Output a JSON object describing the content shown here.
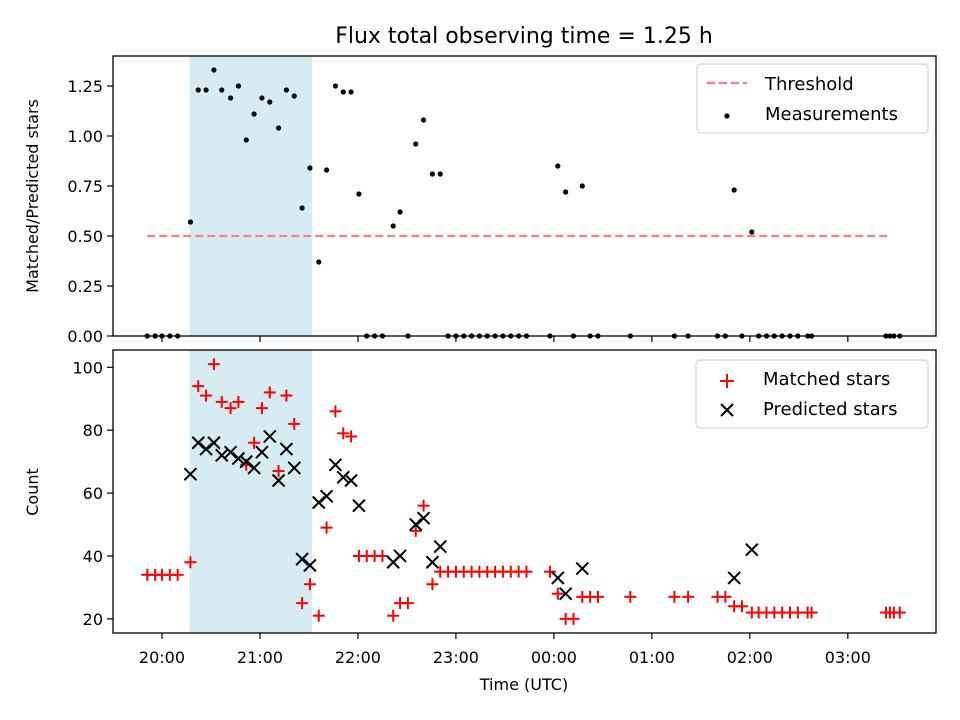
{
  "chart_data": [
    {
      "type": "scatter",
      "title": "Flux total observing time = 1.25 h",
      "xlabel": "",
      "ylabel": "Matched/Predicted stars",
      "x_unit": "hours since 20:00 UTC",
      "xlim": [
        -0.5,
        7.9
      ],
      "ylim": [
        0,
        1.4
      ],
      "yticks": [
        0,
        0.25,
        0.5,
        0.75,
        1.0,
        1.25
      ],
      "ytick_labels": [
        "0.00",
        "0.25",
        "0.50",
        "0.75",
        "1.00",
        "1.25",
        ""
      ],
      "grid": false,
      "legend_location": "top-right",
      "shaded_span": {
        "x0": 0.28,
        "x1": 1.53,
        "color": "#add8e6"
      },
      "series": [
        {
          "name": "Threshold",
          "kind": "dashed-line",
          "color": "#ff7f7f",
          "x": [
            -0.15,
            7.4
          ],
          "y": [
            0.5,
            0.5
          ]
        },
        {
          "name": "Measurements",
          "kind": "points",
          "color": "#000000",
          "points": [
            [
              -0.15,
              0
            ],
            [
              -0.07,
              0
            ],
            [
              0.0,
              0
            ],
            [
              0.08,
              0
            ],
            [
              0.16,
              0
            ],
            [
              0.29,
              0.57
            ],
            [
              0.37,
              1.23
            ],
            [
              0.45,
              1.23
            ],
            [
              0.53,
              1.33
            ],
            [
              0.61,
              1.23
            ],
            [
              0.7,
              1.19
            ],
            [
              0.78,
              1.25
            ],
            [
              0.86,
              0.98
            ],
            [
              0.94,
              1.11
            ],
            [
              1.02,
              1.19
            ],
            [
              1.1,
              1.17
            ],
            [
              1.19,
              1.04
            ],
            [
              1.27,
              1.23
            ],
            [
              1.35,
              1.2
            ],
            [
              1.43,
              0.64
            ],
            [
              1.51,
              0.84
            ],
            [
              1.6,
              0.37
            ],
            [
              1.68,
              0.83
            ],
            [
              1.77,
              1.25
            ],
            [
              1.85,
              1.22
            ],
            [
              1.93,
              1.22
            ],
            [
              2.01,
              0.71
            ],
            [
              2.09,
              0
            ],
            [
              2.17,
              0
            ],
            [
              2.25,
              0
            ],
            [
              2.36,
              0.55
            ],
            [
              2.43,
              0.62
            ],
            [
              2.51,
              0
            ],
            [
              2.59,
              0.96
            ],
            [
              2.67,
              1.08
            ],
            [
              2.76,
              0.81
            ],
            [
              2.84,
              0.81
            ],
            [
              2.92,
              0
            ],
            [
              3.0,
              0
            ],
            [
              3.08,
              0
            ],
            [
              3.16,
              0
            ],
            [
              3.24,
              0
            ],
            [
              3.32,
              0
            ],
            [
              3.4,
              0
            ],
            [
              3.48,
              0
            ],
            [
              3.56,
              0
            ],
            [
              3.64,
              0
            ],
            [
              3.72,
              0
            ],
            [
              3.96,
              0
            ],
            [
              4.04,
              0.85
            ],
            [
              4.12,
              0.72
            ],
            [
              4.2,
              0
            ],
            [
              4.29,
              0.75
            ],
            [
              4.37,
              0
            ],
            [
              4.45,
              0
            ],
            [
              4.78,
              0
            ],
            [
              5.23,
              0
            ],
            [
              5.37,
              0
            ],
            [
              5.67,
              0
            ],
            [
              5.75,
              0
            ],
            [
              5.84,
              0.73
            ],
            [
              5.92,
              0
            ],
            [
              6.02,
              0.52
            ],
            [
              6.09,
              0
            ],
            [
              6.17,
              0
            ],
            [
              6.25,
              0
            ],
            [
              6.33,
              0
            ],
            [
              6.41,
              0
            ],
            [
              6.49,
              0
            ],
            [
              6.59,
              0
            ],
            [
              6.63,
              0
            ],
            [
              7.39,
              0
            ],
            [
              7.43,
              0
            ],
            [
              7.47,
              0
            ],
            [
              7.53,
              0
            ]
          ]
        }
      ]
    },
    {
      "type": "scatter",
      "title": "",
      "xlabel": "Time (UTC)",
      "ylabel": "Count",
      "x_unit": "hours since 20:00 UTC",
      "xlim": [
        -0.5,
        7.9
      ],
      "ylim": [
        15.5,
        105.5
      ],
      "yticks": [
        20,
        40,
        60,
        80,
        100
      ],
      "xticks": [
        0,
        1,
        2,
        3,
        4,
        5,
        6,
        7
      ],
      "xtick_labels": [
        "20:00",
        "21:00",
        "22:00",
        "23:00",
        "00:00",
        "01:00",
        "02:00",
        "03:00"
      ],
      "grid": false,
      "legend_location": "top-right",
      "shaded_span": {
        "x0": 0.28,
        "x1": 1.53,
        "color": "#add8e6"
      },
      "series": [
        {
          "name": "Matched stars",
          "marker": "+",
          "color": "#ff0000",
          "points": [
            [
              -0.15,
              34
            ],
            [
              -0.07,
              34
            ],
            [
              0.0,
              34
            ],
            [
              0.08,
              34
            ],
            [
              0.16,
              34
            ],
            [
              0.29,
              38
            ],
            [
              0.37,
              94
            ],
            [
              0.45,
              91
            ],
            [
              0.53,
              101
            ],
            [
              0.61,
              89
            ],
            [
              0.7,
              87
            ],
            [
              0.78,
              89
            ],
            [
              0.86,
              69
            ],
            [
              0.94,
              76
            ],
            [
              1.02,
              87
            ],
            [
              1.1,
              92
            ],
            [
              1.19,
              67
            ],
            [
              1.27,
              91
            ],
            [
              1.35,
              82
            ],
            [
              1.43,
              25
            ],
            [
              1.51,
              31
            ],
            [
              1.6,
              21
            ],
            [
              1.68,
              49
            ],
            [
              1.77,
              86
            ],
            [
              1.85,
              79
            ],
            [
              1.93,
              78
            ],
            [
              2.01,
              40
            ],
            [
              2.09,
              40
            ],
            [
              2.17,
              40
            ],
            [
              2.25,
              40
            ],
            [
              2.36,
              21
            ],
            [
              2.43,
              25
            ],
            [
              2.51,
              25
            ],
            [
              2.59,
              48
            ],
            [
              2.67,
              56
            ],
            [
              2.76,
              31
            ],
            [
              2.84,
              35
            ],
            [
              2.92,
              35
            ],
            [
              3.0,
              35
            ],
            [
              3.08,
              35
            ],
            [
              3.16,
              35
            ],
            [
              3.24,
              35
            ],
            [
              3.32,
              35
            ],
            [
              3.4,
              35
            ],
            [
              3.48,
              35
            ],
            [
              3.56,
              35
            ],
            [
              3.64,
              35
            ],
            [
              3.72,
              35
            ],
            [
              3.96,
              35
            ],
            [
              4.04,
              28
            ],
            [
              4.12,
              20
            ],
            [
              4.2,
              20
            ],
            [
              4.29,
              27
            ],
            [
              4.37,
              27
            ],
            [
              4.45,
              27
            ],
            [
              4.78,
              27
            ],
            [
              5.23,
              27
            ],
            [
              5.37,
              27
            ],
            [
              5.67,
              27
            ],
            [
              5.75,
              27
            ],
            [
              5.84,
              24
            ],
            [
              5.92,
              24
            ],
            [
              6.02,
              22
            ],
            [
              6.09,
              22
            ],
            [
              6.17,
              22
            ],
            [
              6.25,
              22
            ],
            [
              6.33,
              22
            ],
            [
              6.41,
              22
            ],
            [
              6.49,
              22
            ],
            [
              6.59,
              22
            ],
            [
              6.63,
              22
            ],
            [
              7.39,
              22
            ],
            [
              7.43,
              22
            ],
            [
              7.47,
              22
            ],
            [
              7.53,
              22
            ]
          ]
        },
        {
          "name": "Predicted stars",
          "marker": "x",
          "color": "#000000",
          "points": [
            [
              0.29,
              66
            ],
            [
              0.37,
              76
            ],
            [
              0.45,
              74
            ],
            [
              0.53,
              76
            ],
            [
              0.61,
              72
            ],
            [
              0.7,
              73
            ],
            [
              0.78,
              71
            ],
            [
              0.86,
              70
            ],
            [
              0.94,
              68
            ],
            [
              1.02,
              73
            ],
            [
              1.1,
              78
            ],
            [
              1.19,
              64
            ],
            [
              1.27,
              74
            ],
            [
              1.35,
              68
            ],
            [
              1.43,
              39
            ],
            [
              1.51,
              37
            ],
            [
              1.6,
              57
            ],
            [
              1.68,
              59
            ],
            [
              1.77,
              69
            ],
            [
              1.85,
              65
            ],
            [
              1.93,
              64
            ],
            [
              2.01,
              56
            ],
            [
              2.36,
              38
            ],
            [
              2.43,
              40
            ],
            [
              2.59,
              50
            ],
            [
              2.67,
              52
            ],
            [
              2.76,
              38
            ],
            [
              2.84,
              43
            ],
            [
              4.04,
              33
            ],
            [
              4.12,
              28
            ],
            [
              4.29,
              36
            ],
            [
              5.84,
              33
            ],
            [
              6.02,
              42
            ]
          ]
        }
      ]
    }
  ]
}
